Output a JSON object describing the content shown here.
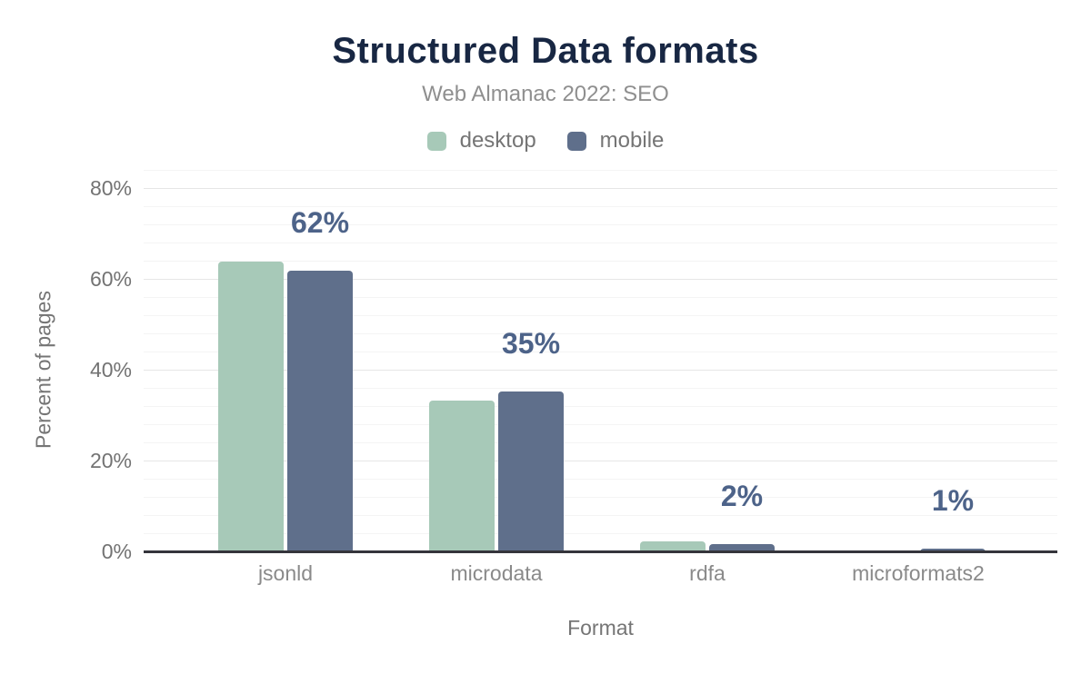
{
  "header": {
    "title": "Structured Data formats",
    "subtitle": "Web Almanac 2022: SEO"
  },
  "legend": {
    "items": [
      {
        "label": "desktop",
        "color": "#a7c9b8"
      },
      {
        "label": "mobile",
        "color": "#5f6f8b"
      }
    ]
  },
  "axes": {
    "y_title": "Percent of pages",
    "x_title": "Format",
    "y_ticks": [
      "0%",
      "20%",
      "40%",
      "60%",
      "80%"
    ]
  },
  "colors": {
    "title": "#182743",
    "subtitle": "#8f8f8f",
    "data_label": "#4d6389",
    "major_grid": "#e6e6e6",
    "minor_grid": "#f4f4f4",
    "axis_line": "#35353b"
  },
  "chart_data": {
    "type": "bar",
    "title": "Structured Data formats",
    "subtitle": "Web Almanac 2022: SEO",
    "xlabel": "Format",
    "ylabel": "Percent of pages",
    "categories": [
      "jsonld",
      "microdata",
      "rdfa",
      "microformats2"
    ],
    "series": [
      {
        "name": "desktop",
        "color": "#a7c9b8",
        "values": [
          64.0,
          33.4,
          2.4,
          0.1
        ]
      },
      {
        "name": "mobile",
        "color": "#5f6f8b",
        "values": [
          62.0,
          35.4,
          1.8,
          0.8
        ]
      }
    ],
    "data_labels": [
      "62%",
      "35%",
      "2%",
      "1%"
    ],
    "data_labels_on_series": "mobile",
    "ylim": [
      0,
      80
    ],
    "ytick_values": [
      0,
      20,
      40,
      60,
      80
    ],
    "minor_tick_interval": 4,
    "grid": "on",
    "legend_position": "top"
  }
}
